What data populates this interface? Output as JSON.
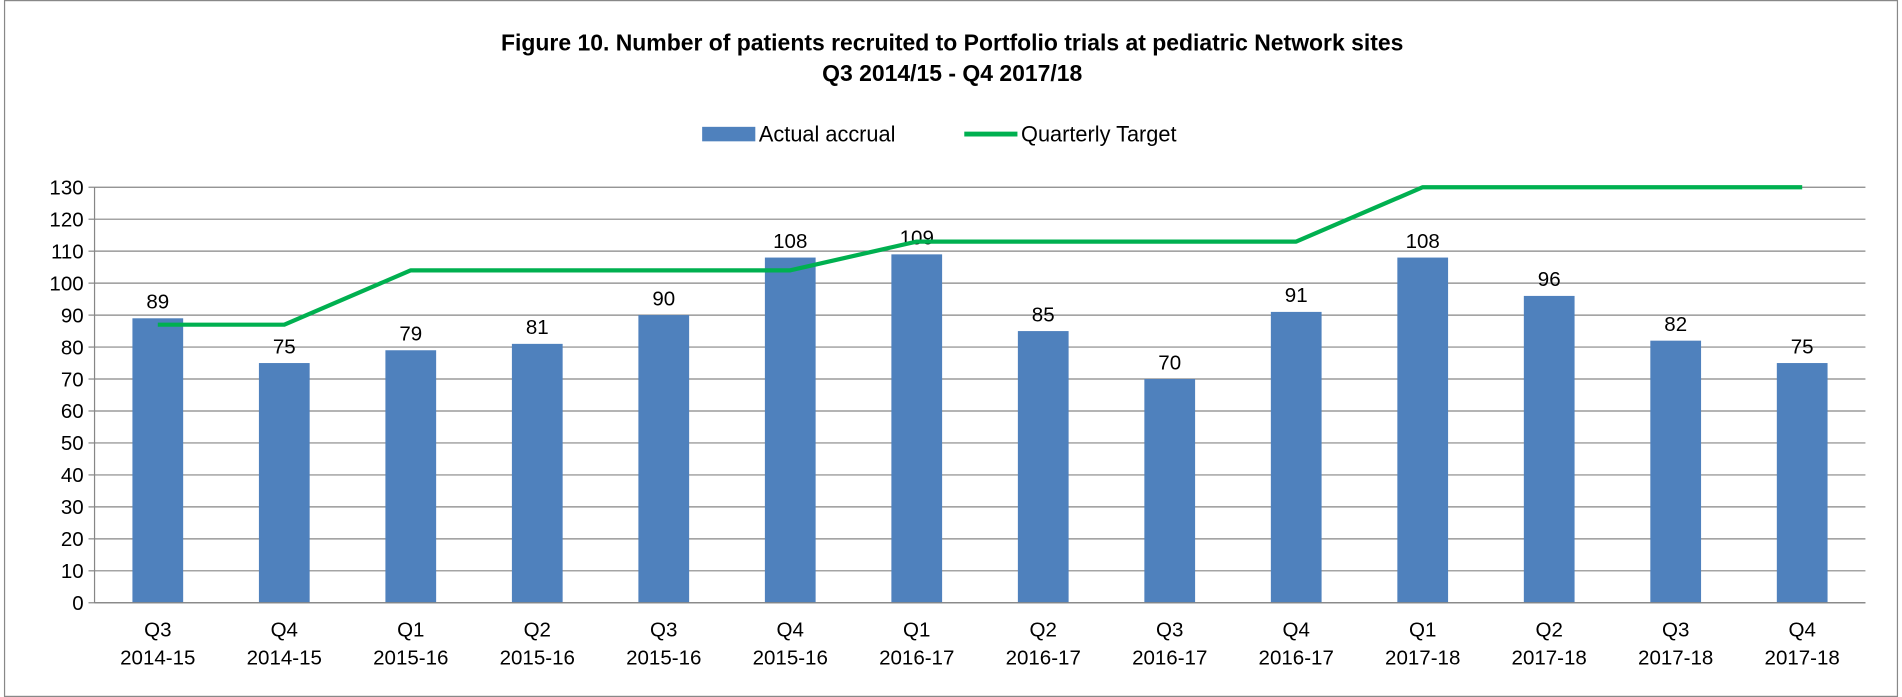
{
  "chart_data": {
    "type": "bar_line",
    "title": "Figure 10. Number of patients recruited to Portfolio trials at pediatric Network sites",
    "subtitle": "Q3 2014/15 - Q4 2017/18",
    "categories": [
      [
        "Q3",
        "2014-15"
      ],
      [
        "Q4",
        "2014-15"
      ],
      [
        "Q1",
        "2015-16"
      ],
      [
        "Q2",
        "2015-16"
      ],
      [
        "Q3",
        "2015-16"
      ],
      [
        "Q4",
        "2015-16"
      ],
      [
        "Q1",
        "2016-17"
      ],
      [
        "Q2",
        "2016-17"
      ],
      [
        "Q3",
        "2016-17"
      ],
      [
        "Q4",
        "2016-17"
      ],
      [
        "Q1",
        "2017-18"
      ],
      [
        "Q2",
        "2017-18"
      ],
      [
        "Q3",
        "2017-18"
      ],
      [
        "Q4",
        "2017-18"
      ]
    ],
    "series": [
      {
        "name": "Actual accrual",
        "type": "bar",
        "color": "#4f81bd",
        "values": [
          89,
          75,
          79,
          81,
          90,
          108,
          109,
          85,
          70,
          91,
          108,
          96,
          82,
          75
        ]
      },
      {
        "name": "Quarterly Target",
        "type": "line",
        "color": "#00b050",
        "values": [
          87,
          87,
          104,
          104,
          104,
          104,
          113,
          113,
          113,
          113,
          130,
          130,
          130,
          130
        ]
      }
    ],
    "ylim": [
      0,
      130
    ],
    "yticks": [
      0,
      10,
      20,
      30,
      40,
      50,
      60,
      70,
      80,
      90,
      100,
      110,
      120,
      130
    ],
    "grid": true,
    "legend": "top"
  }
}
